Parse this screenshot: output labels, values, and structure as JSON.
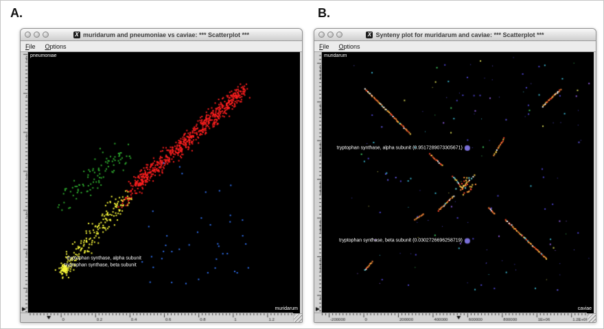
{
  "chrome": {
    "x11_icon_glyph": "X"
  },
  "panels": {
    "a": {
      "figure_label": "A.",
      "window_title": "muridarum and pneumoniae vs caviae: *** Scatterplot ***",
      "menu_items": [
        {
          "label": "File"
        },
        {
          "label": "Options"
        }
      ],
      "y_axis_name": "pneumoniae",
      "x_axis_name": "muridarum"
    },
    "b": {
      "figure_label": "B.",
      "window_title": "Synteny plot for muridarum and caviae: *** Scatterplot ***",
      "menu_items": [
        {
          "label": "File"
        },
        {
          "label": "Options"
        }
      ],
      "y_axis_name": "muridarum",
      "x_axis_name": "caviae"
    }
  },
  "chart_data": [
    {
      "id": "a",
      "type": "scatter",
      "title": "muridarum and pneumoniae vs caviae: *** Scatterplot ***",
      "xlabel": "muridarum",
      "ylabel": "pneumoniae",
      "xlim": [
        -0.19,
        1.39
      ],
      "ylim": [
        -0.13,
        1.21
      ],
      "grid": false,
      "background": "#000000",
      "x_tick_values": [
        -0.2,
        0,
        0.2,
        0.4,
        0.6,
        0.8,
        1
      ],
      "x_tick_labels": [
        "-0.2",
        "0",
        "0.2",
        "0.4",
        "0.6",
        "0.8",
        "1"
      ],
      "y_tick_values": [
        1.2,
        1,
        0.8,
        0.6,
        0.4,
        0.2,
        0
      ],
      "y_tick_labels": [
        "1.2",
        "1",
        "0.8",
        "0.6",
        "0.4",
        "0.2",
        "0"
      ],
      "ruler_marker_x": -0.07,
      "clusters": [
        {
          "name": "red-high-similarity",
          "color": "#ff1f1f",
          "count": 640,
          "shape": "diagonal",
          "from": [
            0.44,
            0.53
          ],
          "to": [
            1.07,
            1.02
          ],
          "spread": 0.06,
          "seed": 11
        },
        {
          "name": "red-tail",
          "color": "#ff1f1f",
          "count": 60,
          "shape": "diagonal",
          "from": [
            0.34,
            0.4
          ],
          "to": [
            0.5,
            0.58
          ],
          "spread": 0.05,
          "seed": 12
        },
        {
          "name": "green-cluster",
          "color": "#2fae2f",
          "count": 95,
          "shape": "diagonal",
          "from": [
            0.02,
            0.44
          ],
          "to": [
            0.38,
            0.7
          ],
          "spread": 0.1,
          "seed": 13
        },
        {
          "name": "yellow-cluster",
          "color": "#f8f83a",
          "count": 185,
          "shape": "diagonal",
          "from": [
            0.01,
            0.08
          ],
          "to": [
            0.38,
            0.48
          ],
          "spread": 0.07,
          "seed": 14
        },
        {
          "name": "yellow-core",
          "color": "#f8f83a",
          "count": 70,
          "shape": "blob",
          "center": [
            0.02,
            0.1
          ],
          "spread": 0.035,
          "seed": 15
        },
        {
          "name": "blue-sparse-low",
          "color": "#3070f0",
          "count": 34,
          "shape": "uniform",
          "x_range": [
            0.4,
            1.12
          ],
          "y_range": [
            0.02,
            0.42
          ],
          "seed": 16
        },
        {
          "name": "blue-sparse-mid",
          "color": "#3070f0",
          "count": 6,
          "shape": "uniform",
          "x_range": [
            0.55,
            1.1
          ],
          "y_range": [
            0.45,
            0.7
          ],
          "seed": 17
        }
      ],
      "annotations": [
        {
          "text": "tryptophan synthase, alpha subunit",
          "x": 0.035,
          "y": 0.15
        },
        {
          "text": "tryptophan synthase, beta subunit",
          "x": 0.02,
          "y": 0.115
        }
      ]
    },
    {
      "id": "b",
      "type": "scatter",
      "title": "Synteny plot for muridarum and caviae: *** Scatterplot ***",
      "xlabel": "caviae",
      "ylabel": "muridarum",
      "xlim": [
        -240000,
        1330000
      ],
      "ylim": [
        -94000,
        1256000
      ],
      "grid": false,
      "background": "#000000",
      "x_tick_values": [
        -200000,
        0,
        200000,
        400000,
        600000,
        800000,
        1000000,
        1200000
      ],
      "x_tick_labels": [
        "-200000",
        "0",
        "200000",
        "400000",
        "600000",
        "800000",
        "1E+06",
        "1.2E+06"
      ],
      "y_tick_values": [
        1200000,
        1000000,
        800000,
        600000,
        400000,
        200000,
        0
      ],
      "y_tick_labels": [
        "1.2E+06",
        "1E+06",
        "800000",
        "600000",
        "400000",
        "200000",
        "0"
      ],
      "ruler_marker_x": 550000,
      "segment_palette": [
        "#ff8c3a",
        "#ff4a2a",
        "#ffd24a",
        "#ffffff",
        "#6ee0e8"
      ],
      "segment_weights": [
        0.38,
        0.22,
        0.18,
        0.12,
        0.1
      ],
      "segments": [
        {
          "from": [
            10000,
            1065000
          ],
          "to": [
            270000,
            835000
          ],
          "count": 48,
          "seed": 21
        },
        {
          "from": [
            384000,
            730000
          ],
          "to": [
            456000,
            670000
          ],
          "count": 13,
          "seed": 22
        },
        {
          "from": [
            516000,
            615000
          ],
          "to": [
            574000,
            548000
          ],
          "count": 12,
          "seed": 23
        },
        {
          "from": [
            724000,
            452000
          ],
          "to": [
            756000,
            418000
          ],
          "count": 8,
          "seed": 24
        },
        {
          "from": [
            820000,
            390000
          ],
          "to": [
            1058000,
            186000
          ],
          "count": 42,
          "seed": 25
        },
        {
          "from": [
            8000,
            130000
          ],
          "to": [
            52000,
            172000
          ],
          "count": 10,
          "seed": 26
        },
        {
          "from": [
            299000,
            390000
          ],
          "to": [
            347000,
            418000
          ],
          "count": 8,
          "seed": 27
        },
        {
          "from": [
            432000,
            435000
          ],
          "to": [
            521000,
            512000
          ],
          "count": 16,
          "seed": 28
        },
        {
          "from": [
            755000,
            723000
          ],
          "to": [
            812000,
            811000
          ],
          "count": 14,
          "seed": 29
        },
        {
          "from": [
            1034000,
            975000
          ],
          "to": [
            1139000,
            1063000
          ],
          "count": 22,
          "seed": 30
        },
        {
          "from": [
            560000,
            545000
          ],
          "to": [
            640000,
            620000
          ],
          "count": 10,
          "seed": 31
        }
      ],
      "center_blob": {
        "center": [
          600000,
          570000
        ],
        "spread": 70000,
        "count": 26,
        "seed": 32
      },
      "scatter": {
        "count": 150,
        "x_range": [
          -80000,
          1300000
        ],
        "y_range": [
          10000,
          1230000
        ],
        "seed": 33,
        "palette": [
          "#4a40c8",
          "#6055e0",
          "#38b0c8",
          "#3fc45f",
          "#cfcf52",
          "#8858d8"
        ],
        "weights": [
          0.4,
          0.18,
          0.16,
          0.1,
          0.09,
          0.07
        ]
      },
      "highlight_points": [
        {
          "label": "tryptophan synthase, alpha subunit (0.9517289073305671)",
          "x": 600000,
          "y": 760000,
          "color": "#7a6fd8",
          "radius": 4
        },
        {
          "label": "tryptophan synthase, beta subunit (0.0302726696258719)",
          "x": 600000,
          "y": 280000,
          "color": "#7a6fd8",
          "radius": 4
        }
      ]
    }
  ]
}
